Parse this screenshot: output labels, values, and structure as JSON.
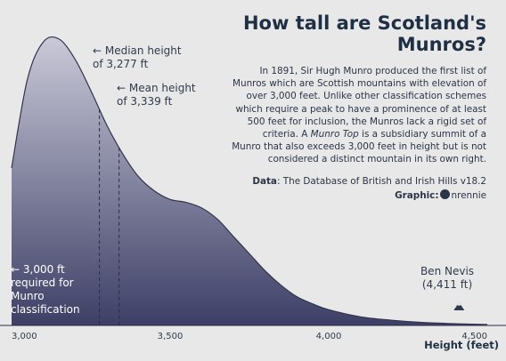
{
  "title": "How tall are Scotland's Munros?",
  "description": {
    "part1": "In 1891, Sir Hugh Munro produced the first list of Munros which are Scottish mountains with elevation of over 3,000 feet. Unlike other classification schemes which require a peak to have a prominence of at least 500 feet for inclusion, the Munros lack a rigid set of criteria. A ",
    "italic": "Munro Top",
    "part2": " is a subsidiary summit of a Munro that also exceeds 3,000 feet in height but is not considered a distinct mountain in its own right."
  },
  "source": {
    "label": "Data",
    "text": ": The Database of British and Irish Hills v18.2"
  },
  "credit": {
    "label": "Graphic:",
    "handle": "nrennie",
    "icon": "github-icon"
  },
  "annotations": {
    "median": "← Median height\nof 3,277 ft",
    "mean": "← Mean height\nof 3,339 ft",
    "threshold": "← 3,000 ft\nrequired for\nMunro\nclassification",
    "ben_nevis": "Ben Nevis\n(4,411 ft)"
  },
  "chart_data": {
    "type": "area",
    "subtype": "density",
    "xlabel": "Height (feet)",
    "ylabel": "",
    "xlim": [
      3000,
      4500
    ],
    "ylim": [
      0,
      1
    ],
    "x_ticks": [
      3000,
      3500,
      4000,
      4500
    ],
    "x_tick_labels": [
      "3,000",
      "3,500",
      "4,000",
      "4,500"
    ],
    "grid": false,
    "x": [
      3000,
      3050,
      3100,
      3150,
      3200,
      3250,
      3300,
      3350,
      3400,
      3450,
      3500,
      3550,
      3600,
      3650,
      3700,
      3750,
      3800,
      3850,
      3900,
      3950,
      4000,
      4100,
      4200,
      4300,
      4400,
      4500
    ],
    "y": [
      0.55,
      0.86,
      0.99,
      1.0,
      0.93,
      0.82,
      0.7,
      0.6,
      0.52,
      0.47,
      0.44,
      0.43,
      0.41,
      0.37,
      0.31,
      0.25,
      0.19,
      0.14,
      0.1,
      0.075,
      0.055,
      0.03,
      0.018,
      0.01,
      0.006,
      0.003
    ],
    "reference_lines": [
      {
        "label": "Median",
        "x": 3277
      },
      {
        "label": "Mean",
        "x": 3339
      }
    ],
    "marker": {
      "label": "Ben Nevis",
      "x": 4411
    },
    "colors": {
      "fill_top": "#c9c9d8",
      "fill_bottom": "#3d3f66",
      "line": "#34334f",
      "background": "#e8e8e8"
    }
  }
}
